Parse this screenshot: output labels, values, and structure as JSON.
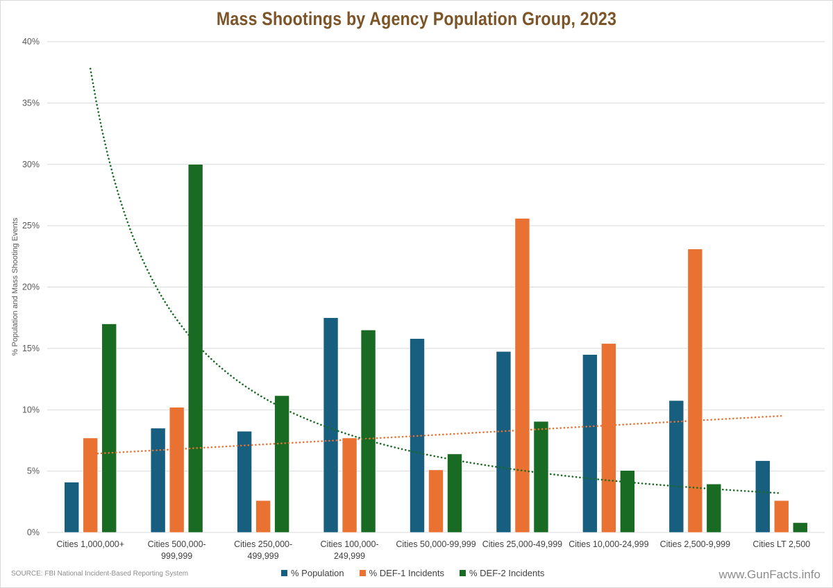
{
  "chart_data": {
    "type": "bar",
    "title": "Mass Shootings by Agency Population Group, 2023",
    "xlabel": "",
    "ylabel": "% Population and Mass Shooting Events",
    "ylim": [
      0,
      40
    ],
    "yticks": [
      "0%",
      "5%",
      "10%",
      "15%",
      "20%",
      "25%",
      "30%",
      "35%",
      "40%"
    ],
    "ytick_values": [
      0,
      5,
      10,
      15,
      20,
      25,
      30,
      35,
      40
    ],
    "grid": true,
    "legend_position": "bottom",
    "categories": [
      [
        "Cities 1,000,000+"
      ],
      [
        "Cities 500,000-",
        "999,999"
      ],
      [
        "Cities 250,000-",
        "499,999"
      ],
      [
        "Cities 100,000-",
        "249,999"
      ],
      [
        "Cities 50,000-99,999"
      ],
      [
        "Cities 25,000-49,999"
      ],
      [
        "Cities 10,000-24,999"
      ],
      [
        "Cities 2,500-9,999"
      ],
      [
        "Cities LT 2,500"
      ]
    ],
    "series": [
      {
        "name": "% Population",
        "color": "#175e7f",
        "values": [
          4.1,
          8.5,
          8.25,
          17.5,
          15.8,
          14.75,
          14.5,
          10.75,
          5.85
        ]
      },
      {
        "name": "% DEF-1 Incidents",
        "color": "#e97132",
        "values": [
          7.7,
          10.2,
          2.6,
          7.7,
          5.1,
          25.6,
          15.4,
          23.1,
          2.6
        ]
      },
      {
        "name": "% DEF-2 Incidents",
        "color": "#196b24",
        "values": [
          17.0,
          30.0,
          11.15,
          16.5,
          6.4,
          9.05,
          5.05,
          3.95,
          0.8
        ]
      }
    ],
    "trendlines": [
      {
        "series": "% DEF-1 Incidents",
        "kind": "linear",
        "color": "#e97132",
        "start": 6.4,
        "end": 9.5
      },
      {
        "series": "% DEF-2 Incidents",
        "kind": "power",
        "color": "#196b24",
        "start": 37.8,
        "end": 3.2
      }
    ],
    "source": "SOURCE: FBI National Incident-Based Reporting System",
    "watermark": "www.GunFacts.info"
  }
}
